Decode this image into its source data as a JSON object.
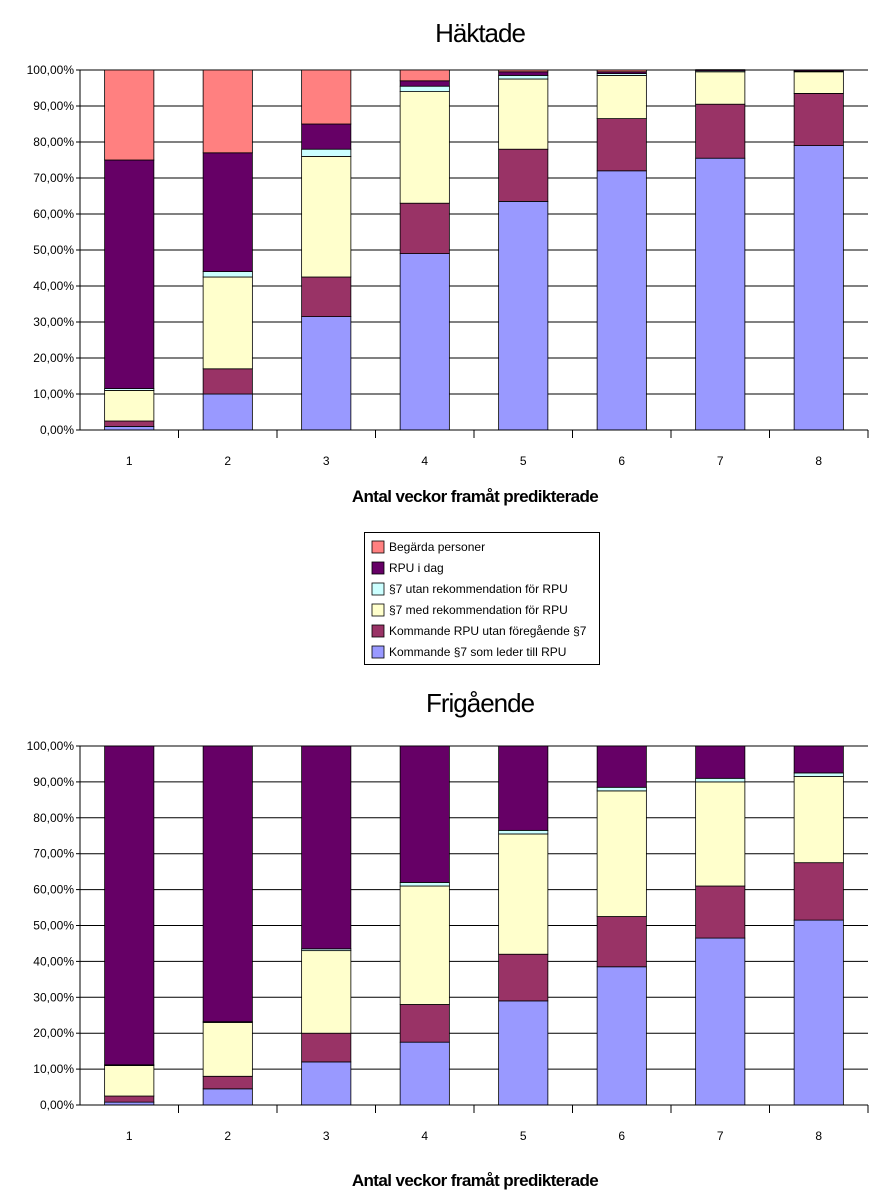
{
  "legend": {
    "items": [
      {
        "label": "Begärda personer",
        "color": "#ff8080"
      },
      {
        "label": "RPU i dag",
        "color": "#660066"
      },
      {
        "label": "§7 utan rekommendation för RPU",
        "color": "#ccffff"
      },
      {
        "label": "§7 med rekommendation för RPU",
        "color": "#ffffcc"
      },
      {
        "label": "Kommande RPU utan föregående §7",
        "color": "#993366"
      },
      {
        "label": "Kommande §7 som leder till RPU",
        "color": "#9999ff"
      }
    ]
  },
  "chart_data": [
    {
      "type": "bar",
      "stacked": true,
      "title": "Häktade",
      "xlabel": "Antal veckor framåt predikterade",
      "ylabel": "",
      "ylim": [
        0,
        100
      ],
      "y_ticks": [
        "0,00%",
        "10,00%",
        "20,00%",
        "30,00%",
        "40,00%",
        "50,00%",
        "60,00%",
        "70,00%",
        "80,00%",
        "90,00%",
        "100,00%"
      ],
      "categories": [
        "1",
        "2",
        "3",
        "4",
        "5",
        "6",
        "7",
        "8"
      ],
      "series": [
        {
          "name": "Kommande §7 som leder till RPU",
          "color": "#9999ff",
          "values": [
            1,
            10,
            31.5,
            49,
            63.5,
            72,
            75.5,
            79
          ]
        },
        {
          "name": "Kommande RPU utan föregående §7",
          "color": "#993366",
          "values": [
            1.5,
            7,
            11,
            14,
            14.5,
            14.5,
            15,
            14.5
          ]
        },
        {
          "name": "§7 med rekommendation för RPU",
          "color": "#ffffcc",
          "values": [
            8.5,
            25.5,
            33.5,
            31,
            19.5,
            12,
            9,
            6
          ]
        },
        {
          "name": "§7 utan rekommendation för RPU",
          "color": "#ccffff",
          "values": [
            0.5,
            1.5,
            2,
            1.5,
            1,
            0.5,
            0.3,
            0.2
          ]
        },
        {
          "name": "RPU i dag",
          "color": "#660066",
          "values": [
            63.5,
            33,
            7,
            1.5,
            1,
            0.5,
            0.3,
            0.3
          ]
        },
        {
          "name": "Begärda personer",
          "color": "#ff8080",
          "values": [
            25,
            23,
            15,
            3,
            0.5,
            0.5,
            0,
            0
          ]
        }
      ]
    },
    {
      "type": "bar",
      "stacked": true,
      "title": "Frigående",
      "xlabel": "Antal veckor framåt predikterade",
      "ylabel": "",
      "ylim": [
        0,
        100
      ],
      "y_ticks": [
        "0,00%",
        "10,00%",
        "20,00%",
        "30,00%",
        "40,00%",
        "50,00%",
        "60,00%",
        "70,00%",
        "80,00%",
        "90,00%",
        "100,00%"
      ],
      "categories": [
        "1",
        "2",
        "3",
        "4",
        "5",
        "6",
        "7",
        "8"
      ],
      "series": [
        {
          "name": "Kommande §7 som leder till RPU",
          "color": "#9999ff",
          "values": [
            0.8,
            4.5,
            12,
            17.5,
            29,
            38.5,
            46.5,
            51.5
          ]
        },
        {
          "name": "Kommande RPU utan föregående §7",
          "color": "#993366",
          "values": [
            1.7,
            3.5,
            8,
            10.5,
            13,
            14,
            14.5,
            16
          ]
        },
        {
          "name": "§7 med rekommendation för RPU",
          "color": "#ffffcc",
          "values": [
            8.5,
            15,
            23,
            33,
            33.5,
            35,
            29,
            24
          ]
        },
        {
          "name": "§7 utan rekommendation för RPU",
          "color": "#ccffff",
          "values": [
            0.2,
            0.2,
            0.5,
            1,
            1,
            1,
            1,
            1
          ]
        },
        {
          "name": "RPU i dag",
          "color": "#660066",
          "values": [
            88.8,
            76.8,
            56.5,
            38,
            23.5,
            11.5,
            9,
            7.5
          ]
        },
        {
          "name": "Begärda personer",
          "color": "#ff8080",
          "values": [
            0,
            0,
            0,
            0,
            0,
            0,
            0,
            0
          ]
        }
      ]
    }
  ]
}
